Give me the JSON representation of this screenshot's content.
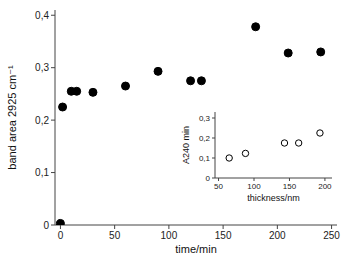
{
  "chart_data": [
    {
      "type": "scatter",
      "x": [
        0,
        2,
        10,
        15,
        30,
        60,
        90,
        120,
        130,
        180,
        210,
        240
      ],
      "values": [
        0.003,
        0.225,
        0.255,
        0.255,
        0.253,
        0.265,
        0.293,
        0.275,
        0.275,
        0.378,
        0.328,
        0.33
      ],
      "x_label": "time/min",
      "y_label": "band area 2925 cm⁻¹",
      "color": "black",
      "marker": "circle",
      "xlim": [
        -5,
        255
      ],
      "ylim": [
        0,
        0.41
      ],
      "xticks": [
        0,
        50,
        100,
        150,
        200,
        250
      ],
      "yticks": [
        0,
        {
          "value": 0.1,
          "label": "0,1"
        },
        {
          "value": 0.2,
          "label": "0,2"
        },
        {
          "value": 0.3,
          "label": "0,3"
        },
        {
          "value": 0.4,
          "label": "0,4"
        }
      ]
    },
    {
      "type": "scatter",
      "x": [
        65,
        88,
        143,
        163,
        193
      ],
      "values": [
        0.1,
        0.123,
        0.175,
        0.175,
        0.225
      ],
      "x_label": "thickness/nm",
      "y_label": "A240 min",
      "color": "black",
      "marker": "open_circle",
      "xlim": [
        45,
        210
      ],
      "ylim": [
        0,
        0.33
      ],
      "xticks": [
        50,
        100,
        150,
        200
      ],
      "yticks": [
        0,
        {
          "value": 0.1,
          "label": "0,1"
        },
        {
          "value": 0.2,
          "label": "0,2"
        },
        {
          "value": 0.3,
          "label": "0,3"
        }
      ]
    }
  ]
}
